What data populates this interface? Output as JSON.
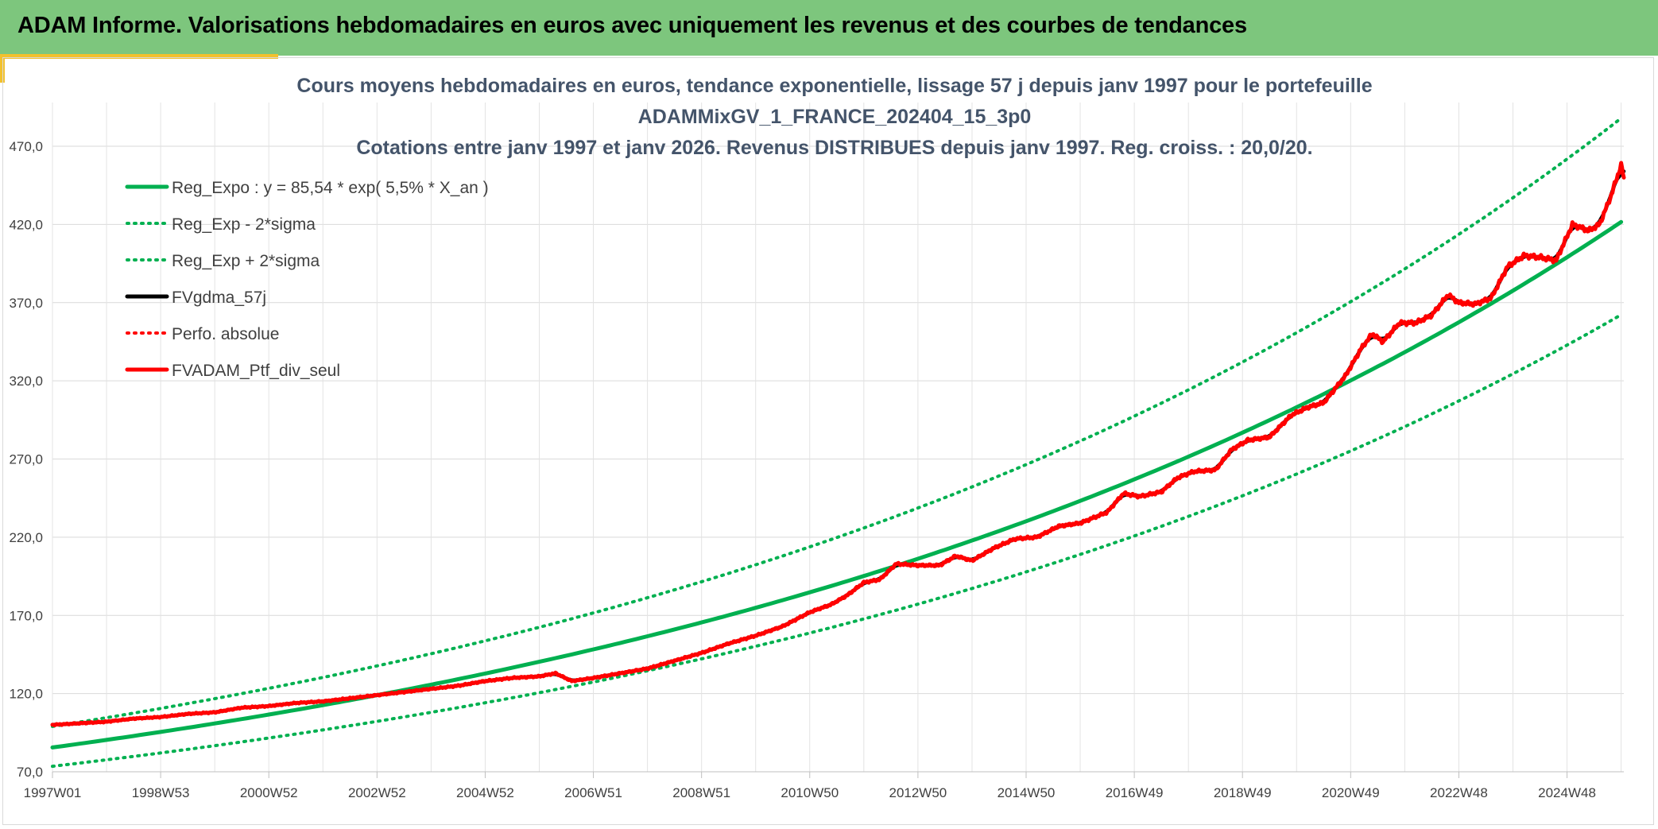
{
  "header": {
    "title": "ADAM Informe. Valorisations hebdomadaires en euros avec uniquement les revenus et des courbes de tendances"
  },
  "chart_data": {
    "type": "line",
    "title_lines": [
      "Cours moyens hebdomadaires en euros, tendance exponentielle, lissage 57 j depuis janv 1997 pour le portefeuille",
      "ADAMMixGV_1_FRANCE_202404_15_3p0",
      "Cotations entre janv 1997 et janv 2026. Revenus DISTRIBUES depuis janv 1997. Reg. croiss. : 20,0/20."
    ],
    "xlabel": "",
    "ylabel": "",
    "ylim": [
      70,
      470
    ],
    "yticks": [
      "70,0",
      "120,0",
      "170,0",
      "220,0",
      "270,0",
      "320,0",
      "370,0",
      "420,0",
      "470,0"
    ],
    "xrange_years": [
      1997.0,
      2026.05
    ],
    "xticks": [
      {
        "label": "1997W01",
        "year": 1997.0
      },
      {
        "label": "1998W53",
        "year": 1999.0
      },
      {
        "label": "2000W52",
        "year": 2001.0
      },
      {
        "label": "2002W52",
        "year": 2003.0
      },
      {
        "label": "2004W52",
        "year": 2005.0
      },
      {
        "label": "2006W51",
        "year": 2007.0
      },
      {
        "label": "2008W51",
        "year": 2009.0
      },
      {
        "label": "2010W50",
        "year": 2011.0
      },
      {
        "label": "2012W50",
        "year": 2013.0
      },
      {
        "label": "2014W50",
        "year": 2015.0
      },
      {
        "label": "2016W49",
        "year": 2017.0
      },
      {
        "label": "2018W49",
        "year": 2019.0
      },
      {
        "label": "2020W49",
        "year": 2021.0
      },
      {
        "label": "2022W48",
        "year": 2023.0
      },
      {
        "label": "2024W48",
        "year": 2025.0
      }
    ],
    "grid": true,
    "legend_position": "top-left",
    "series": [
      {
        "name": "Reg_Expo : y = 85,54 * exp( 5,5% *  X_an )",
        "color": "#00b050",
        "style": "solid",
        "formula": {
          "a": 85.54,
          "rate": 0.055
        }
      },
      {
        "name": "Reg_Exp - 2*sigma",
        "color": "#00b050",
        "style": "dotted",
        "formula": {
          "a": 73.5,
          "rate": 0.055
        }
      },
      {
        "name": "Reg_Exp + 2*sigma",
        "color": "#00b050",
        "style": "dotted",
        "formula": {
          "a": 99.0,
          "rate": 0.055
        }
      },
      {
        "name": "FVgdma_57j",
        "color": "#000000",
        "style": "solid",
        "smoothed_of": "FVADAM_Ptf_div_seul"
      },
      {
        "name": "Perfo. absolue",
        "color": "#ff0000",
        "style": "dotted",
        "points": []
      },
      {
        "name": "FVADAM_Ptf_div_seul",
        "color": "#ff0000",
        "style": "solid",
        "points": [
          [
            1997.0,
            100
          ],
          [
            1997.5,
            101
          ],
          [
            1998.0,
            102
          ],
          [
            1998.5,
            104
          ],
          [
            1999.0,
            105
          ],
          [
            1999.5,
            107
          ],
          [
            2000.0,
            108
          ],
          [
            2000.5,
            111
          ],
          [
            2001.0,
            112
          ],
          [
            2001.5,
            114
          ],
          [
            2002.0,
            115
          ],
          [
            2002.5,
            117
          ],
          [
            2003.0,
            119
          ],
          [
            2003.5,
            121
          ],
          [
            2004.0,
            123
          ],
          [
            2004.5,
            125
          ],
          [
            2005.0,
            128
          ],
          [
            2005.5,
            130
          ],
          [
            2006.0,
            131
          ],
          [
            2006.3,
            133
          ],
          [
            2006.6,
            128
          ],
          [
            2007.0,
            130
          ],
          [
            2007.5,
            133
          ],
          [
            2008.0,
            136
          ],
          [
            2008.5,
            141
          ],
          [
            2009.0,
            146
          ],
          [
            2009.5,
            152
          ],
          [
            2010.0,
            157
          ],
          [
            2010.5,
            163
          ],
          [
            2011.0,
            172
          ],
          [
            2011.4,
            177
          ],
          [
            2011.7,
            183
          ],
          [
            2012.0,
            191
          ],
          [
            2012.3,
            193
          ],
          [
            2012.6,
            203
          ],
          [
            2013.0,
            202
          ],
          [
            2013.4,
            202
          ],
          [
            2013.7,
            208
          ],
          [
            2014.0,
            205
          ],
          [
            2014.4,
            213
          ],
          [
            2014.8,
            219
          ],
          [
            2015.2,
            220
          ],
          [
            2015.6,
            227
          ],
          [
            2016.0,
            229
          ],
          [
            2016.5,
            236
          ],
          [
            2016.8,
            248
          ],
          [
            2017.1,
            246
          ],
          [
            2017.5,
            249
          ],
          [
            2017.8,
            258
          ],
          [
            2018.1,
            262
          ],
          [
            2018.5,
            263
          ],
          [
            2018.8,
            276
          ],
          [
            2019.1,
            282
          ],
          [
            2019.5,
            284
          ],
          [
            2019.9,
            298
          ],
          [
            2020.2,
            303
          ],
          [
            2020.5,
            306
          ],
          [
            2020.9,
            323
          ],
          [
            2021.2,
            341
          ],
          [
            2021.4,
            350
          ],
          [
            2021.6,
            345
          ],
          [
            2021.9,
            357
          ],
          [
            2022.2,
            357
          ],
          [
            2022.5,
            362
          ],
          [
            2022.8,
            375
          ],
          [
            2023.0,
            370
          ],
          [
            2023.3,
            369
          ],
          [
            2023.6,
            373
          ],
          [
            2023.9,
            393
          ],
          [
            2024.2,
            400
          ],
          [
            2024.5,
            399
          ],
          [
            2024.8,
            397
          ],
          [
            2025.1,
            420
          ],
          [
            2025.4,
            416
          ],
          [
            2025.6,
            420
          ],
          [
            2025.8,
            437
          ],
          [
            2026.0,
            458
          ],
          [
            2026.05,
            450
          ]
        ]
      }
    ]
  }
}
